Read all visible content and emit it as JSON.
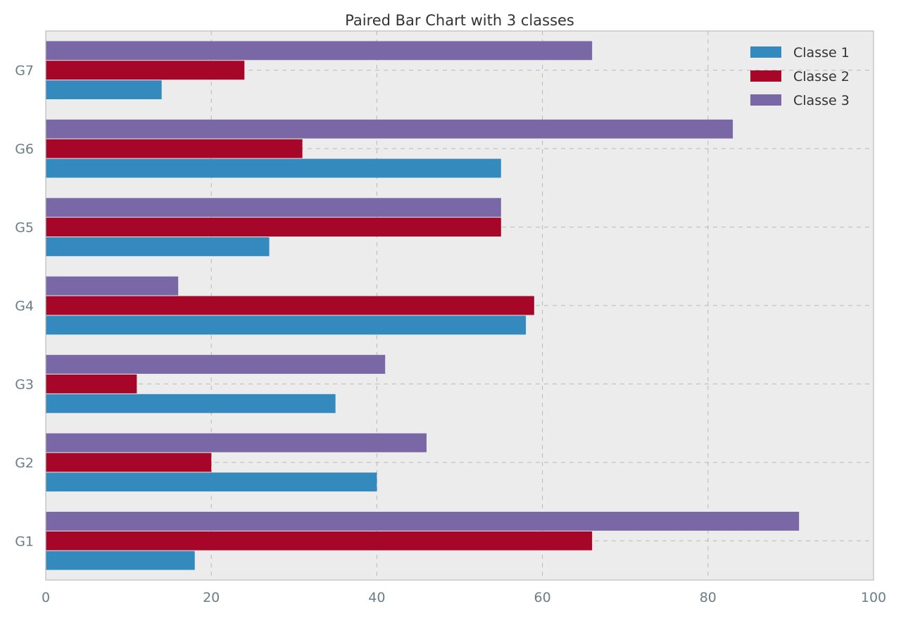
{
  "chart_data": {
    "type": "bar",
    "orientation": "horizontal",
    "title": "Paired Bar Chart with 3 classes",
    "xlabel": "",
    "ylabel": "",
    "categories": [
      "G1",
      "G2",
      "G3",
      "G4",
      "G5",
      "G6",
      "G7"
    ],
    "series": [
      {
        "name": "Classe 1",
        "color": "#348abd",
        "values": [
          18,
          40,
          35,
          58,
          27,
          55,
          14
        ]
      },
      {
        "name": "Classe 2",
        "color": "#a60628",
        "values": [
          66,
          20,
          11,
          59,
          55,
          31,
          24
        ]
      },
      {
        "name": "Classe 3",
        "color": "#7a68a6",
        "values": [
          91,
          46,
          41,
          16,
          55,
          83,
          66
        ]
      }
    ],
    "xlim": [
      0,
      100
    ],
    "xticks": [
      "0",
      "20",
      "40",
      "60",
      "80",
      "100"
    ],
    "grid": true,
    "legend_position": "top-right",
    "background": "#ececec"
  }
}
